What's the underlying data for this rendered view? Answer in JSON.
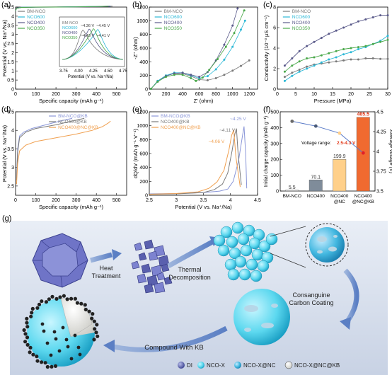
{
  "chart_data": [
    {
      "panel": "(a)",
      "type": "line",
      "xlabel": "Specific capacity (mAh g⁻¹)",
      "ylabel": "Potential (V vs. Na⁺/Na)",
      "xlim": [
        0,
        550
      ],
      "ylim": [
        0,
        4.5
      ],
      "xticks": [
        0,
        100,
        200,
        300,
        400,
        500
      ],
      "yticks": [
        0.0,
        0.5,
        1.0,
        1.5,
        2.0,
        2.5,
        3.0,
        3.5,
        4.0,
        4.5
      ],
      "legend": [
        "BM-NCO",
        "NCO600",
        "NCO400",
        "NCO350"
      ],
      "colors": [
        "#7a7a7a",
        "#2bb8d6",
        "#5a5a8a",
        "#4aa84a"
      ],
      "series": [
        {
          "name": "BM-NCO",
          "x": [
            0,
            5,
            30,
            100,
            200,
            300,
            400,
            460,
            480
          ],
          "y": [
            4.3,
            4.45,
            4.5,
            4.5,
            4.51,
            4.52,
            4.53,
            4.55,
            4.55
          ]
        },
        {
          "name": "NCO600",
          "x": [
            0,
            5,
            30,
            100,
            200,
            300,
            400,
            470
          ],
          "y": [
            4.3,
            4.44,
            4.49,
            4.5,
            4.5,
            4.52,
            4.53,
            4.55
          ]
        },
        {
          "name": "NCO400",
          "x": [
            0,
            5,
            30,
            100,
            200,
            300,
            400,
            450,
            470
          ],
          "y": [
            4.3,
            4.44,
            4.48,
            4.49,
            4.5,
            4.51,
            4.52,
            4.54,
            4.55
          ]
        },
        {
          "name": "NCO350",
          "x": [
            0,
            5,
            30,
            100,
            200,
            300,
            400,
            460
          ],
          "y": [
            4.3,
            4.43,
            4.48,
            4.5,
            4.5,
            4.51,
            4.53,
            4.55
          ]
        }
      ],
      "inset": {
        "xlabel": "Potential (V vs. Na⁺/Na)",
        "xticks": [
          "3.75",
          "4.00",
          "4.25",
          "4.50",
          "4.75"
        ],
        "legend": [
          "BM-NCO",
          "NCO600",
          "NCO400",
          "NCO350"
        ],
        "annotations": [
          "~4.36 V",
          "~4.45 V",
          "~4.43 V",
          "~4.41 V"
        ]
      }
    },
    {
      "panel": "(b)",
      "type": "scatter",
      "xlabel": "Z' (ohm)",
      "ylabel": "-Z'' (ohm)",
      "xlim": [
        0,
        1300
      ],
      "ylim": [
        0,
        1200
      ],
      "xticks": [
        0,
        200,
        400,
        600,
        800,
        1000,
        1200
      ],
      "yticks": [
        0,
        200,
        400,
        600,
        800,
        1000,
        1200
      ],
      "legend": [
        "BM-NCO",
        "NCO600",
        "NCO400",
        "NCO350"
      ],
      "colors": [
        "#7a7a7a",
        "#2bb8d6",
        "#5a5a8a",
        "#4aa84a"
      ],
      "series": [
        {
          "name": "BM-NCO",
          "x": [
            20,
            100,
            200,
            300,
            400,
            500,
            600,
            700,
            800,
            900,
            1000,
            1100,
            1200
          ],
          "y": [
            5,
            120,
            200,
            230,
            225,
            190,
            140,
            130,
            160,
            210,
            270,
            340,
            420
          ]
        },
        {
          "name": "NCO600",
          "x": [
            20,
            100,
            200,
            300,
            400,
            500,
            600,
            700,
            800,
            900,
            1000,
            1100,
            1150
          ],
          "y": [
            5,
            120,
            200,
            240,
            240,
            200,
            160,
            190,
            290,
            430,
            620,
            870,
            1000
          ]
        },
        {
          "name": "NCO400",
          "x": [
            20,
            100,
            200,
            300,
            400,
            500,
            600,
            700,
            800,
            900,
            1000,
            1060
          ],
          "y": [
            5,
            110,
            190,
            230,
            240,
            210,
            180,
            250,
            420,
            650,
            930,
            1180
          ]
        },
        {
          "name": "NCO350",
          "x": [
            20,
            100,
            200,
            300,
            400,
            500,
            560,
            640,
            720,
            820,
            920,
            1020,
            1140
          ],
          "y": [
            5,
            110,
            180,
            210,
            210,
            160,
            120,
            170,
            280,
            440,
            620,
            820,
            1150
          ]
        }
      ]
    },
    {
      "panel": "(c)",
      "type": "line",
      "xlabel": "Pressure (MPa)",
      "ylabel": "Conductivity (10⁻³ μS cm⁻¹)",
      "xlim": [
        0,
        30
      ],
      "ylim": [
        0,
        8
      ],
      "xticks": [
        0,
        5,
        10,
        15,
        20,
        25,
        30
      ],
      "yticks": [
        0,
        2,
        4,
        6,
        8
      ],
      "legend": [
        "BM-NCO",
        "NCO600",
        "NCO400",
        "NCO350"
      ],
      "colors": [
        "#7a7a7a",
        "#2bb8d6",
        "#5a5a8a",
        "#4aa84a"
      ],
      "series": [
        {
          "name": "BM-NCO",
          "x": [
            2,
            4,
            6,
            8,
            10,
            12,
            14,
            16,
            18,
            20,
            22,
            24,
            26,
            28,
            30
          ],
          "y": [
            1.2,
            1.6,
            1.9,
            2.2,
            2.4,
            2.5,
            2.6,
            2.7,
            2.8,
            2.9,
            2.9,
            3.0,
            3.0,
            2.95,
            2.95
          ]
        },
        {
          "name": "NCO600",
          "x": [
            2,
            4,
            6,
            8,
            10,
            12,
            14,
            16,
            18,
            20,
            22,
            24,
            26,
            28,
            30
          ],
          "y": [
            0.8,
            1.3,
            1.7,
            2.0,
            2.3,
            2.6,
            2.9,
            3.1,
            3.4,
            3.6,
            3.9,
            4.1,
            4.4,
            4.7,
            5.2
          ]
        },
        {
          "name": "NCO400",
          "x": [
            2,
            4,
            6,
            8,
            10,
            12,
            14,
            16,
            18,
            20,
            22,
            24,
            26,
            28,
            30
          ],
          "y": [
            2.3,
            3.0,
            3.7,
            4.2,
            4.6,
            5.0,
            5.4,
            5.7,
            6.0,
            6.3,
            6.6,
            6.8,
            7.0,
            7.2,
            7.2
          ]
        },
        {
          "name": "NCO350",
          "x": [
            2,
            4,
            6,
            8,
            10,
            12,
            14,
            16,
            18,
            20,
            22,
            24,
            26,
            28,
            30
          ],
          "y": [
            1.7,
            2.3,
            2.7,
            3.0,
            3.1,
            3.3,
            3.5,
            3.7,
            3.9,
            4.0,
            4.1,
            4.2,
            4.4,
            4.6,
            4.8
          ]
        }
      ]
    },
    {
      "panel": "(d)",
      "type": "line",
      "xlabel": "Specific capacity (mAh g⁻¹)",
      "ylabel": "Potential (V vs. Na⁺/Na)",
      "xlim": [
        0,
        550
      ],
      "ylim": [
        2.25,
        4.5
      ],
      "xticks": [
        0,
        100,
        200,
        300,
        400,
        500
      ],
      "yticks": [
        2.5,
        3.0,
        3.5,
        4.0,
        4.5
      ],
      "legend": [
        "BM-NCO@KB",
        "NCO400@KB",
        "NCO400@NC@KB"
      ],
      "colors": [
        "#8a96d8",
        "#7a7a7a",
        "#f0a050"
      ],
      "series": [
        {
          "name": "BM-NCO@KB",
          "x": [
            5,
            10,
            20,
            40,
            80,
            150,
            220,
            260,
            280
          ],
          "y": [
            2.7,
            3.5,
            3.85,
            3.95,
            4.05,
            4.15,
            4.25,
            4.3,
            4.32
          ]
        },
        {
          "name": "NCO400@KB",
          "x": [
            5,
            10,
            20,
            50,
            100,
            200,
            280,
            320,
            340
          ],
          "y": [
            2.65,
            3.4,
            3.8,
            3.95,
            4.05,
            4.15,
            4.25,
            4.3,
            4.32
          ]
        },
        {
          "name": "NCO400@NC@KB",
          "x": [
            5,
            10,
            20,
            50,
            100,
            200,
            300,
            380,
            430,
            460,
            470
          ],
          "y": [
            2.55,
            3.1,
            3.45,
            3.6,
            3.7,
            3.8,
            3.9,
            4.0,
            4.1,
            4.2,
            4.25
          ]
        }
      ]
    },
    {
      "panel": "(e)",
      "type": "line",
      "xlabel": "Potential (V vs. Na⁺/Na)",
      "ylabel": "dQ/dV (mAh g⁻¹ V⁻¹)",
      "xlim": [
        2.5,
        4.5
      ],
      "ylim": [
        0,
        1200
      ],
      "xticks": [
        2.5,
        3.0,
        3.5,
        4.0,
        4.5
      ],
      "yticks": [
        0,
        200,
        400,
        600,
        800,
        1000,
        1200
      ],
      "legend": [
        "BM-NCO@KB",
        "NCO400@KB",
        "NCO400@NC@KB"
      ],
      "colors": [
        "#8a96d8",
        "#7a7a7a",
        "#f0a050"
      ],
      "annotations": [
        "~4.25 V",
        "~4.11 V",
        "~4.06 V"
      ],
      "series": [
        {
          "name": "BM-NCO@KB",
          "x": [
            2.5,
            3.0,
            3.5,
            3.8,
            3.95,
            4.05,
            4.15,
            4.22,
            4.25,
            4.28,
            4.3
          ],
          "y": [
            20,
            25,
            40,
            60,
            90,
            200,
            500,
            850,
            990,
            600,
            100
          ]
        },
        {
          "name": "NCO400@KB",
          "x": [
            2.5,
            3.0,
            3.5,
            3.7,
            3.85,
            3.95,
            4.03,
            4.08,
            4.11,
            4.14,
            4.2
          ],
          "y": [
            15,
            20,
            40,
            80,
            160,
            320,
            640,
            880,
            960,
            600,
            150
          ]
        },
        {
          "name": "NCO400@NC@KB",
          "x": [
            2.5,
            3.0,
            3.4,
            3.6,
            3.75,
            3.88,
            3.97,
            4.02,
            4.06,
            4.1,
            4.18
          ],
          "y": [
            15,
            25,
            50,
            100,
            190,
            360,
            650,
            860,
            940,
            550,
            120
          ]
        }
      ]
    },
    {
      "panel": "(f)",
      "type": "bar",
      "categories": [
        "BM-NCO",
        "NCO400",
        "NCO400\n@NC",
        "NCO400\n@NC@KB"
      ],
      "values": [
        5.5,
        70.1,
        199.9,
        465.5
      ],
      "value_labels": [
        "5.5",
        "70.1",
        "199.9",
        "465.5"
      ],
      "ylabel": "Initial charge capacity (mAh g⁻¹)",
      "y2label": "Average voltage (V)",
      "ylim": [
        0,
        500
      ],
      "yticks": [
        0,
        100,
        200,
        300,
        400,
        500
      ],
      "y2lim": [
        3.5,
        4.5
      ],
      "y2ticks": [
        3.5,
        3.75,
        4.0,
        4.25,
        4.5
      ],
      "average_voltage": [
        4.38,
        4.32,
        4.23,
        3.98
      ],
      "annotation": {
        "label": "Voltage range:",
        "value": "2.5-4.3 V"
      },
      "bar_colors": [
        "#d0d0d0",
        "#7f8c9a",
        "#ffd08a",
        "#f06a30"
      ]
    }
  ],
  "panel_labels": {
    "a": "(a)",
    "b": "(b)",
    "c": "(c)",
    "d": "(d)",
    "e": "(e)",
    "f": "(f)",
    "g": "(g)"
  },
  "schematic": {
    "steps": [
      "Heat\nTreatment",
      "Thermal\nDecomposition",
      "Consanguine\nCarbon Coating",
      "Compound With KB"
    ],
    "legend": [
      "DI",
      "NCO-X",
      "NCO-X@NC",
      "NCO-X@NC@KB"
    ]
  }
}
